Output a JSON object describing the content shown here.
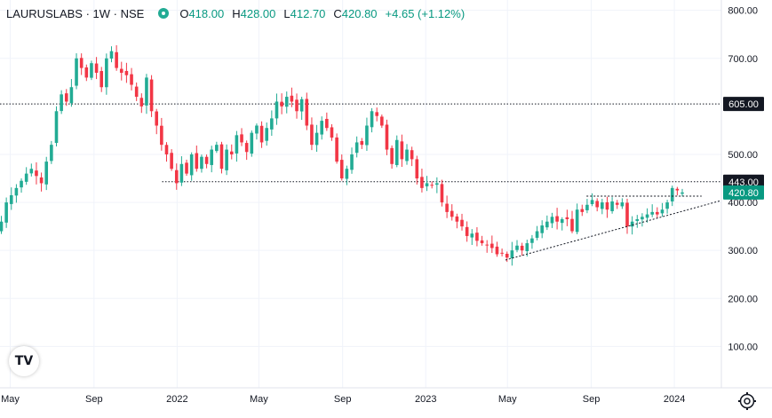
{
  "header": {
    "symbol": "LAURUSLABS · 1W · NSE",
    "open_label": "O",
    "open": "418.00",
    "high_label": "H",
    "high": "428.00",
    "low_label": "L",
    "low": "412.70",
    "close_label": "C",
    "close": "420.80",
    "change": "+4.65 (+1.12%)"
  },
  "logo_text": "TV",
  "icons": {
    "logo": "tradingview-logo-icon",
    "settings": "gear-icon",
    "live": "live-dot-icon"
  },
  "colors": {
    "up": "#089981",
    "down": "#f23645",
    "up_body": "#22ab94",
    "price_tag": "#089981",
    "level_tag": "#131722"
  },
  "chart_data": {
    "type": "candlestick",
    "y_ticks": [
      "800.00",
      "700.00",
      "500.00",
      "400.00",
      "300.00",
      "200.00",
      "100.00"
    ],
    "y_tick_values": [
      800,
      700,
      500,
      400,
      300,
      200,
      100
    ],
    "ylim": [
      0,
      810
    ],
    "x_ticks": [
      "May",
      "Sep",
      "2022",
      "May",
      "Sep",
      "2023",
      "May",
      "Sep",
      "2024"
    ],
    "x_tick_dates": [
      "2021-05-01",
      "2021-09-01",
      "2022-01-01",
      "2022-05-01",
      "2022-09-01",
      "2023-01-01",
      "2023-05-01",
      "2023-09-01",
      "2024-01-01"
    ],
    "xlim": [
      "2021-04-16",
      "2024-03-10"
    ],
    "horizontal_levels": [
      {
        "value": 605,
        "label": "605.00",
        "from": "2021-04-16",
        "style": "dotted"
      },
      {
        "value": 443,
        "label": "443.00",
        "from": "2021-12-10",
        "style": "dotted"
      }
    ],
    "last_price": {
      "value": 420.8,
      "label": "420.80"
    },
    "trendlines": [
      {
        "start": [
          "2023-04-28",
          280
        ],
        "end": [
          "2024-03-10",
          404
        ],
        "style": "dotted"
      },
      {
        "start": [
          "2023-08-25",
          413
        ],
        "end": [
          "2024-02-10",
          413
        ],
        "style": "dotted"
      }
    ],
    "closes": [
      360,
      400,
      415,
      430,
      445,
      460,
      470,
      455,
      440,
      485,
      520,
      590,
      625,
      610,
      640,
      700,
      680,
      660,
      690,
      670,
      640,
      700,
      715,
      680,
      670,
      665,
      645,
      620,
      600,
      660,
      590,
      560,
      520,
      500,
      470,
      440,
      480,
      460,
      500,
      470,
      495,
      480,
      510,
      520,
      470,
      510,
      500,
      540,
      525,
      505,
      545,
      560,
      525,
      555,
      575,
      610,
      600,
      620,
      610,
      590,
      615,
      560,
      520,
      545,
      570,
      555,
      535,
      485,
      450,
      470,
      500,
      525,
      520,
      560,
      590,
      580,
      560,
      510,
      480,
      530,
      490,
      510,
      490,
      450,
      430,
      440,
      435,
      440,
      400,
      380,
      370,
      360,
      350,
      330,
      335,
      320,
      315,
      312,
      305,
      292,
      295,
      285,
      300,
      310,
      300,
      315,
      325,
      340,
      352,
      360,
      370,
      360,
      365,
      365,
      340,
      385,
      380,
      395,
      405,
      390,
      400,
      385,
      402,
      395,
      400,
      350,
      360,
      365,
      370,
      375,
      380,
      375,
      385,
      400,
      430,
      425,
      420.8
    ],
    "open": 418.0,
    "high": 428.0,
    "low": 412.7,
    "close": 420.8
  }
}
